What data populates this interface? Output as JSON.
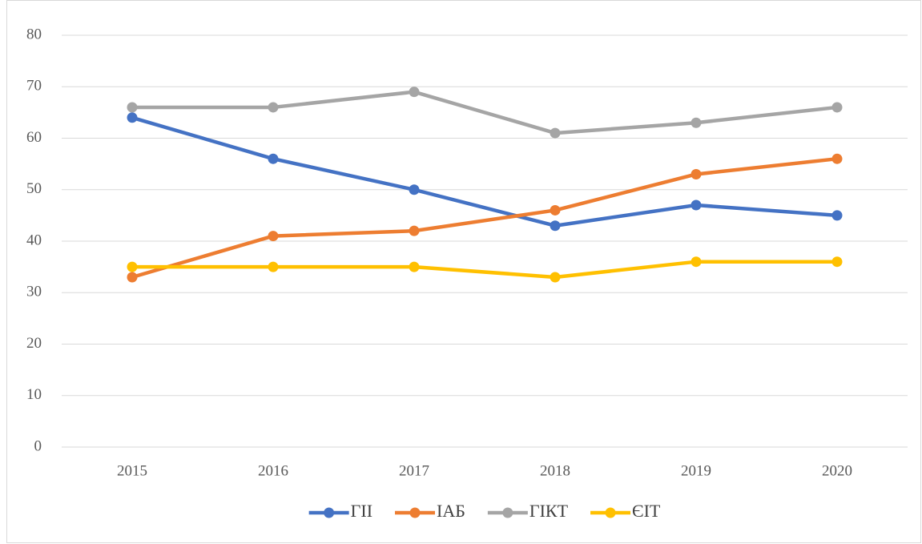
{
  "chart_data": {
    "type": "line",
    "categories": [
      "2015",
      "2016",
      "2017",
      "2018",
      "2019",
      "2020"
    ],
    "series": [
      {
        "name": "ГІІ",
        "color": "#4472c4",
        "values": [
          64,
          56,
          50,
          43,
          47,
          45
        ]
      },
      {
        "name": "ІАБ",
        "color": "#ed7d31",
        "values": [
          33,
          41,
          42,
          46,
          53,
          56
        ]
      },
      {
        "name": "ГІКТ",
        "color": "#a5a5a5",
        "values": [
          66,
          66,
          69,
          61,
          63,
          66
        ]
      },
      {
        "name": "ЄІТ",
        "color": "#ffc000",
        "values": [
          35,
          35,
          35,
          33,
          36,
          36
        ]
      }
    ],
    "ylim": [
      0,
      80
    ],
    "yticks": [
      0,
      10,
      20,
      30,
      40,
      50,
      60,
      70,
      80
    ],
    "grid": true,
    "legend": "bottom"
  }
}
